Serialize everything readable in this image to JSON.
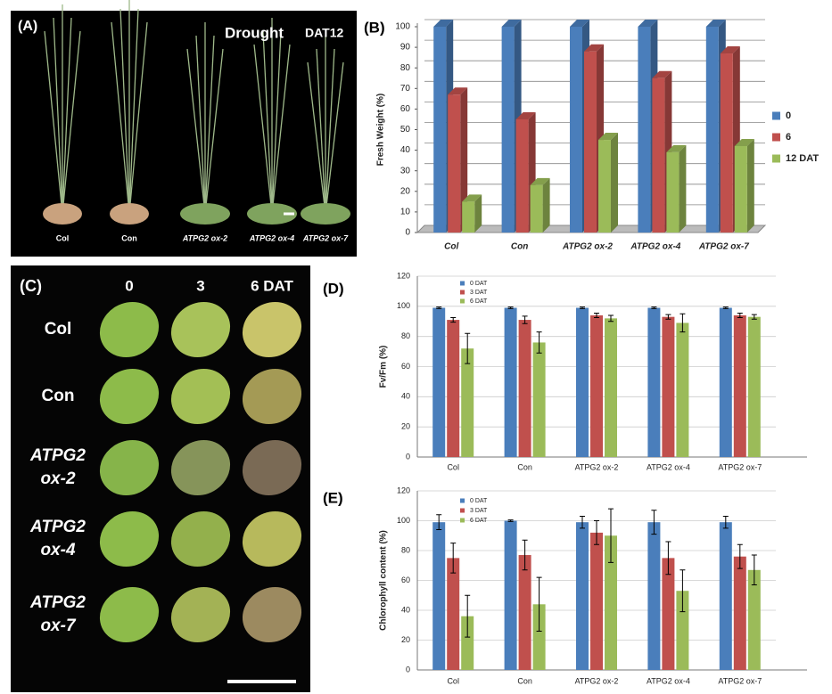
{
  "photo_a": {
    "panel_label": "(A)",
    "treatment": "Drought",
    "time": "DAT12",
    "labels": [
      "Col",
      "Con",
      "ATPG2 ox-2",
      "ATPG2 ox-4",
      "ATPG2 ox-7"
    ]
  },
  "photo_c": {
    "panel_label": "(C)",
    "columns": [
      "0",
      "3",
      "6 DAT"
    ],
    "rows": [
      [
        "Col"
      ],
      [
        "Con"
      ],
      [
        "ATPG2",
        "ox-2"
      ],
      [
        "ATPG2",
        "ox-4"
      ],
      [
        "ATPG2",
        "ox-7"
      ]
    ]
  },
  "chart_data": [
    {
      "type": "bar",
      "panel_label": "(B)",
      "ylabel": "Fresh Weight (%)",
      "bar3d": true,
      "categories": [
        "Col",
        "Con",
        "ATPG2 ox-2",
        "ATPG2 ox-4",
        "ATPG2 ox-7"
      ],
      "series": [
        {
          "name": "0",
          "color": "#4a7ebb",
          "values": [
            100,
            100,
            100,
            100,
            100
          ]
        },
        {
          "name": "6",
          "color": "#c0504d",
          "values": [
            67,
            55,
            88,
            75,
            87
          ]
        },
        {
          "name": "12 DAT",
          "color": "#9bbb59",
          "values": [
            15,
            23,
            45,
            39,
            42
          ]
        }
      ],
      "ylim": [
        0,
        100
      ],
      "yticks": [
        0,
        10,
        20,
        30,
        40,
        50,
        60,
        70,
        80,
        90,
        100
      ],
      "grid": true,
      "legend": "right"
    },
    {
      "type": "bar",
      "panel_label": "(D)",
      "ylabel": "Fv/Fm (%)",
      "categories": [
        "Col",
        "Con",
        "ATPG2 ox-2",
        "ATPG2 ox-4",
        "ATPG2 ox-7"
      ],
      "series": [
        {
          "name": "0 DAT",
          "color": "#4a7ebb",
          "values": [
            99,
            99,
            99,
            99,
            99
          ],
          "errors": [
            0.5,
            0.5,
            0.5,
            0.5,
            0.5
          ]
        },
        {
          "name": "3 DAT",
          "color": "#c0504d",
          "values": [
            91,
            91,
            94,
            93,
            94
          ],
          "errors": [
            1.5,
            2.5,
            1.5,
            1.5,
            1.5
          ]
        },
        {
          "name": "6 DAT",
          "color": "#9bbb59",
          "values": [
            72,
            76,
            92,
            89,
            93
          ],
          "errors": [
            10,
            7,
            2,
            6,
            1.5
          ]
        }
      ],
      "ylim": [
        0,
        120
      ],
      "yticks": [
        0,
        20,
        40,
        60,
        80,
        100,
        120
      ],
      "grid": true,
      "legend": "upper left"
    },
    {
      "type": "bar",
      "panel_label": "(E)",
      "ylabel": "Chlorophyll content (%)",
      "categories": [
        "Col",
        "Con",
        "ATPG2 ox-2",
        "ATPG2 ox-4",
        "ATPG2 ox-7"
      ],
      "series": [
        {
          "name": "0 DAT",
          "color": "#4a7ebb",
          "values": [
            99,
            100,
            99,
            99,
            99
          ],
          "errors": [
            5,
            0.5,
            4,
            8,
            4
          ]
        },
        {
          "name": "3 DAT",
          "color": "#c0504d",
          "values": [
            75,
            77,
            92,
            75,
            76
          ],
          "errors": [
            10,
            10,
            8,
            11,
            8
          ]
        },
        {
          "name": "6 DAT",
          "color": "#9bbb59",
          "values": [
            36,
            44,
            90,
            53,
            67
          ],
          "errors": [
            14,
            18,
            18,
            14,
            10
          ]
        }
      ],
      "ylim": [
        0,
        120
      ],
      "yticks": [
        0,
        20,
        40,
        60,
        80,
        100,
        120
      ],
      "grid": true,
      "legend": "upper left"
    }
  ]
}
